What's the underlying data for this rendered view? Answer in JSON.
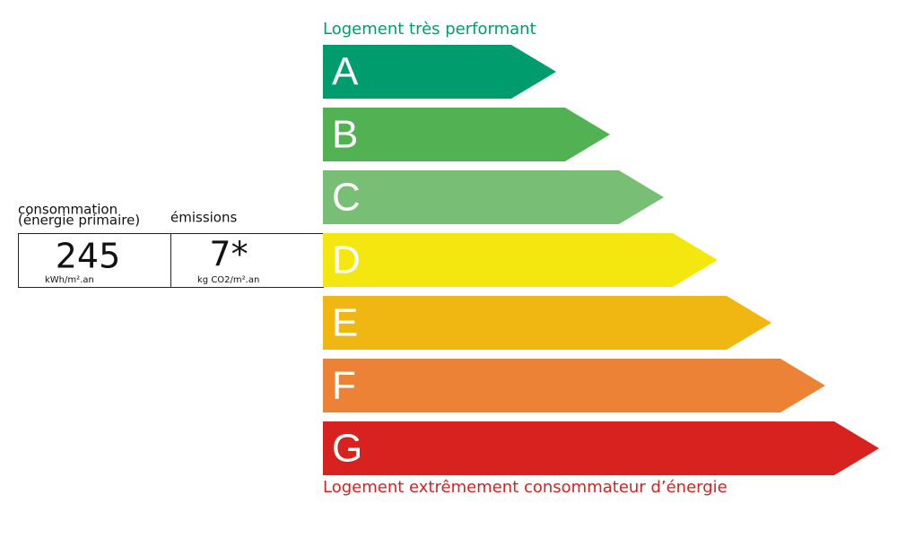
{
  "top_label": "Logement très performant",
  "bottom_label": "Logement extrêmement consommateur d’énergie",
  "classes": [
    {
      "letter": "A",
      "color": "#009c6d"
    },
    {
      "letter": "B",
      "color": "#52b153"
    },
    {
      "letter": "C",
      "color": "#78bf75"
    },
    {
      "letter": "D",
      "color": "#f4e70f"
    },
    {
      "letter": "E",
      "color": "#f0b611"
    },
    {
      "letter": "F",
      "color": "#eb8235"
    },
    {
      "letter": "G",
      "color": "#d7221f"
    }
  ],
  "consumption": {
    "label_line1": "consommation",
    "label_line2": "(énergie primaire)",
    "value": "245",
    "unit": "kWh/m².an"
  },
  "emissions": {
    "label": "émissions",
    "value": "7*",
    "unit": "kg CO2/m².an"
  }
}
